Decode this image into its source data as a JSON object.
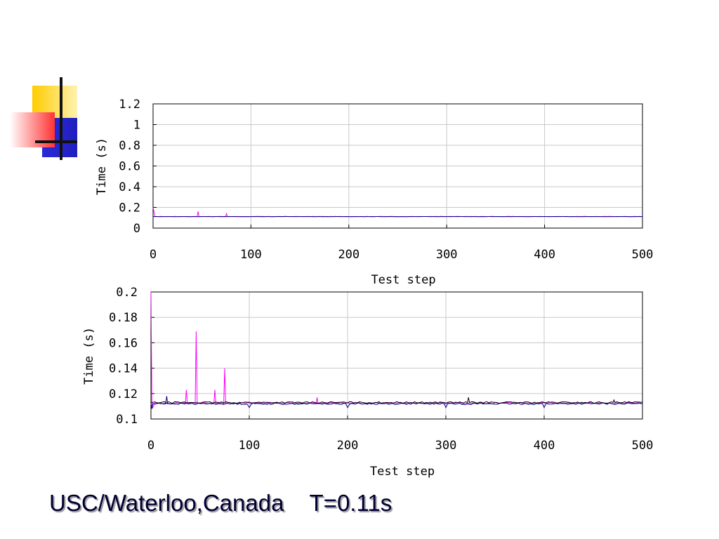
{
  "caption": "USC/Waterloo,Canada    T=0.11s",
  "colors": {
    "series_a": "#ff00ff",
    "series_b": "#00008b",
    "series_c": "#000000",
    "grid": "#c8c8c8"
  },
  "chart_data": [
    {
      "type": "line",
      "xlabel": "Test step",
      "ylabel": "Time (s)",
      "xlim": [
        0,
        500
      ],
      "ylim": [
        0,
        1.2
      ],
      "x_ticks": [
        0,
        100,
        200,
        300,
        400,
        500
      ],
      "y_ticks": [
        0,
        0.2,
        0.4,
        0.6,
        0.8,
        1,
        1.2
      ],
      "y_tick_labels": [
        "0",
        "0.2",
        "0.4",
        "0.6",
        "0.8",
        "1",
        "1.2"
      ],
      "grid": true,
      "series": [
        {
          "baseline": 0.112,
          "points": [
            [
              0,
              0.2
            ],
            [
              2,
              0.11
            ],
            [
              45,
              0.11
            ],
            [
              46,
              0.16
            ],
            [
              47,
              0.11
            ],
            [
              74,
              0.11
            ],
            [
              75,
              0.14
            ],
            [
              76,
              0.112
            ]
          ],
          "color_key": "series_a"
        },
        {
          "baseline": 0.111,
          "points": [
            [
              0,
              0.11
            ],
            [
              500,
              0.111
            ]
          ],
          "color_key": "series_b"
        }
      ]
    },
    {
      "type": "line",
      "xlabel": "Test step",
      "ylabel": "Time (s)",
      "xlim": [
        0,
        500
      ],
      "ylim": [
        0.1,
        0.2
      ],
      "x_ticks": [
        0,
        100,
        200,
        300,
        400,
        500
      ],
      "y_ticks": [
        0.1,
        0.12,
        0.14,
        0.16,
        0.18,
        0.2
      ],
      "y_tick_labels": [
        "0.1",
        "0.12",
        "0.14",
        "0.16",
        "0.18",
        "0.2"
      ],
      "grid": true,
      "series": [
        {
          "baseline": 0.1125,
          "points": [
            [
              0,
              0.2
            ],
            [
              1,
              0.11
            ],
            [
              2,
              0.109
            ],
            [
              35,
              0.112
            ],
            [
              36,
              0.123
            ],
            [
              37,
              0.112
            ],
            [
              45,
              0.112
            ],
            [
              46,
              0.169
            ],
            [
              47,
              0.112
            ],
            [
              64,
              0.112
            ],
            [
              65,
              0.123
            ],
            [
              66,
              0.112
            ],
            [
              74,
              0.112
            ],
            [
              75,
              0.14
            ],
            [
              76,
              0.112
            ],
            [
              168,
              0.112
            ],
            [
              169,
              0.117
            ],
            [
              170,
              0.112
            ]
          ],
          "color_key": "series_a"
        },
        {
          "baseline": 0.112,
          "points": [
            [
              0,
              0.112
            ],
            [
              1,
              0.108
            ],
            [
              15,
              0.112
            ],
            [
              16,
              0.118
            ],
            [
              17,
              0.112
            ],
            [
              100,
              0.109
            ],
            [
              200,
              0.109
            ],
            [
              300,
              0.109
            ],
            [
              400,
              0.109
            ],
            [
              500,
              0.112
            ]
          ],
          "color_key": "series_b"
        },
        {
          "baseline": 0.113,
          "points": [
            [
              0,
              0.113
            ],
            [
              322,
              0.113
            ],
            [
              323,
              0.117
            ],
            [
              324,
              0.113
            ],
            [
              470,
              0.113
            ],
            [
              471,
              0.115
            ],
            [
              472,
              0.113
            ]
          ],
          "color_key": "series_c"
        }
      ]
    }
  ]
}
